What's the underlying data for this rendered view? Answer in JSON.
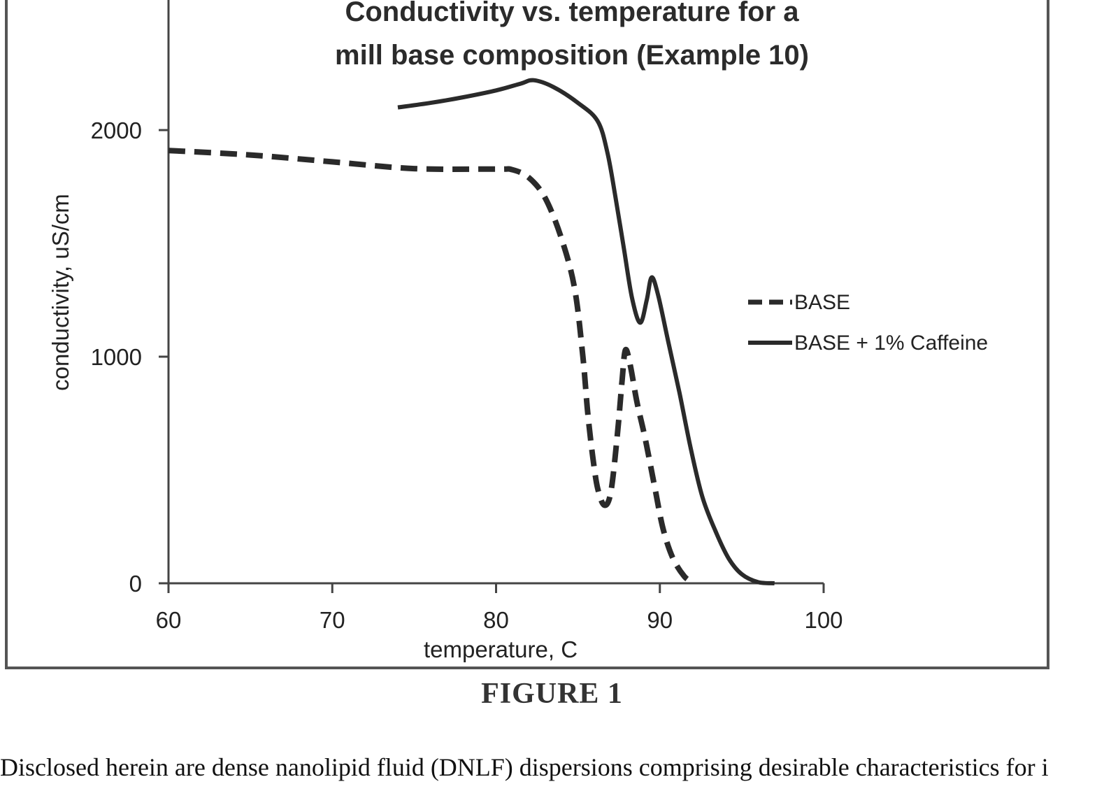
{
  "chart_data": {
    "type": "line",
    "title": [
      "Conductivity vs. temperature for a",
      "mill base composition (Example 10)"
    ],
    "xlabel": "temperature, C",
    "ylabel": "conductivity, uS/cm",
    "xlim": [
      60,
      100
    ],
    "ylim": [
      0,
      2400
    ],
    "x_ticks": [
      60,
      70,
      80,
      90,
      100
    ],
    "y_ticks": [
      0,
      1000,
      2000
    ],
    "grid": false,
    "legend_position": "right",
    "series": [
      {
        "name": "BASE",
        "style": "dashed",
        "color": "#2a2a2a",
        "points": [
          [
            60,
            1910
          ],
          [
            65,
            1890
          ],
          [
            70,
            1860
          ],
          [
            75,
            1830
          ],
          [
            80,
            1828
          ],
          [
            81,
            1825
          ],
          [
            82,
            1790
          ],
          [
            83,
            1700
          ],
          [
            84,
            1520
          ],
          [
            84.8,
            1300
          ],
          [
            85.3,
            1000
          ],
          [
            85.6,
            750
          ],
          [
            85.9,
            560
          ],
          [
            86.2,
            420
          ],
          [
            86.6,
            345
          ],
          [
            87.0,
            400
          ],
          [
            87.4,
            650
          ],
          [
            87.7,
            900
          ],
          [
            87.9,
            1030
          ],
          [
            88.2,
            960
          ],
          [
            88.6,
            800
          ],
          [
            89.1,
            640
          ],
          [
            89.7,
            420
          ],
          [
            90.2,
            240
          ],
          [
            90.8,
            110
          ],
          [
            91.5,
            30
          ],
          [
            92,
            5
          ]
        ]
      },
      {
        "name": "BASE + 1% Caffeine",
        "style": "solid",
        "color": "#2a2a2a",
        "points": [
          [
            74,
            2100
          ],
          [
            76,
            2120
          ],
          [
            78,
            2145
          ],
          [
            80,
            2175
          ],
          [
            81.5,
            2205
          ],
          [
            82.3,
            2220
          ],
          [
            83.5,
            2190
          ],
          [
            85,
            2120
          ],
          [
            86.2,
            2040
          ],
          [
            86.8,
            1900
          ],
          [
            87.3,
            1700
          ],
          [
            87.8,
            1480
          ],
          [
            88.3,
            1260
          ],
          [
            88.8,
            1150
          ],
          [
            89.2,
            1250
          ],
          [
            89.5,
            1350
          ],
          [
            89.9,
            1270
          ],
          [
            90.5,
            1070
          ],
          [
            91.2,
            840
          ],
          [
            91.9,
            590
          ],
          [
            92.6,
            380
          ],
          [
            93.4,
            230
          ],
          [
            94.2,
            110
          ],
          [
            95,
            40
          ],
          [
            96,
            5
          ],
          [
            97,
            0
          ]
        ]
      }
    ]
  },
  "caption": "FIGURE 1",
  "body_text": "Disclosed herein are dense nanolipid fluid (DNLF) dispersions comprising desirable characteristics for i"
}
